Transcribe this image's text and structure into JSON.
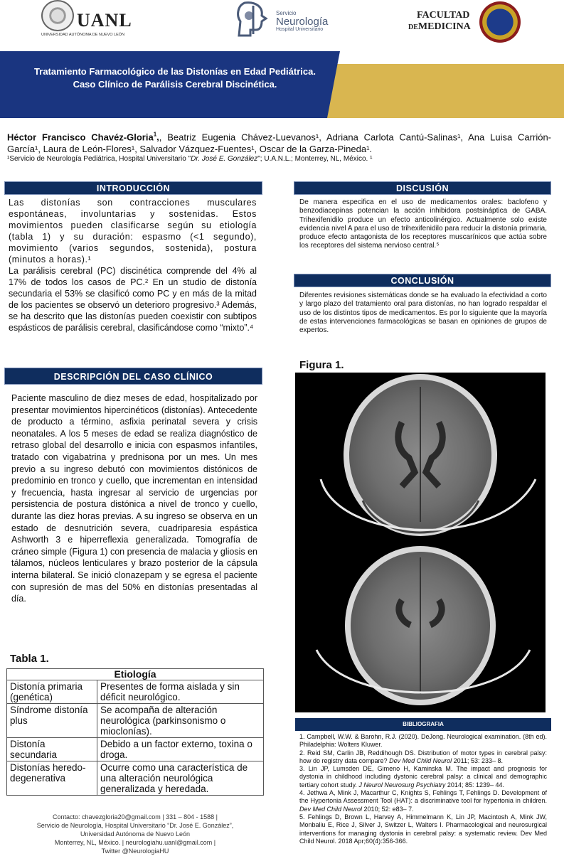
{
  "header": {
    "uanl_name": "UANL",
    "uanl_sub": "UNIVERSIDAD AUTÓNOMA DE NUEVO LEÓN",
    "neuro_line1": "Servicio",
    "neuro_line2": "Neurología",
    "neuro_line3": "Hospital Universitario",
    "fm_line1": "FACULTAD",
    "fm_de": "DE",
    "fm_line2": "MEDICINA"
  },
  "banner": {
    "title_line1": "Tratamiento Farmacológico de las Distonías en Edad Pediátrica.",
    "title_line2": "Caso Clínico de Parálisis Cerebral Discinética."
  },
  "authors": {
    "lead": "Héctor Francisco Chavéz-Gloria",
    "lead_sup": "1",
    "rest": ", Beatriz Eugenia Chávez-Luevanos¹, Adriana Carlota Cantú-Salinas¹, Ana Luisa Carrión-García¹, Laura de León-Flores¹, Salvador Vázquez-Fuentes¹, Oscar de la Garza-Pineda¹.",
    "affil_pre": "¹Servicio de Neurología Pediátrica, Hospital Universitario \"",
    "affil_italic": "Dr. José E. González",
    "affil_post": "\"; U.A.N.L.; Monterrey, NL, México. ¹"
  },
  "sections": {
    "intro": "INTRODUCCIÓN",
    "caso": "DESCRIPCIÓN DEL CASO CLÍNICO",
    "disc": "DISCUSIÓN",
    "concl": "CONCLUSIÓN",
    "biblio": "BIBLIOGRAFIA"
  },
  "intro": {
    "p1": "Las distonías son contracciones musculares espontáneas, involuntarias y sostenidas. Estos movimientos pueden clasificarse según su etiología (tabla 1) y su duración: espasmo (<1 segundo), movimiento (varios segundos, sostenida), postura (minutos a horas).¹",
    "p2": "La parálisis cerebral (PC) discinética comprende del 4% al 17% de todos los casos de PC.² En un studio de distonía secundaria el 53% se clasificó como PC y en más de la mitad de los pacientes se observó un deterioro progresivo.³ Además, se ha descrito que las distonías pueden coexistir con subtipos espásticos de parálisis cerebral, clasificándose como “mixto”.⁴"
  },
  "caso": {
    "text": "Paciente masculino de diez meses de edad, hospitalizado por presentar movimientos hipercinéticos (distonías). Antecedente de producto a término, asfixia perinatal severa y crisis neonatales. A los 5 meses de edad se realiza diagnóstico de retraso global del desarrollo e inicia con espasmos infantiles, tratado con vigabatrina y prednisona por un mes. Un mes previo a su ingreso debutó con movimientos distónicos de predominio en tronco y cuello, que incrementan en intensidad y frecuencia, hasta ingresar al servicio de urgencias por persistencia de postura distónica a nivel de tronco y cuello, durante las diez horas previas. A su ingreso se observa en un estado de desnutrición severa, cuadriparesia espástica Ashworth 3 e hiperreflexia generalizada. Tomografía de cráneo simple (Figura 1) con presencia de malacia y gliosis en tálamos, núcleos lenticulares y brazo posterior de la cápsula interna bilateral. Se inició clonazepam y se egresa el paciente con supresión de mas del 50% en distonías presentadas al día."
  },
  "disc": {
    "text": "De manera especifica en el uso de medicamentos orales: baclofeno y benzodiacepinas potencian la acción inhibidora postsináptica de GABA. Trihexifenidilo produce un efecto anticolinérgico. Actualmente solo existe evidencia nivel A para el uso de trihexifenidilo para reducir la distonía primaria, produce efecto antagonista de los receptores muscarínicos que actúa sobre los receptores del sistema nervioso central.⁵"
  },
  "concl": {
    "text": "Diferentes revisiones sistemáticas donde se ha evaluado la efectividad a corto y largo plazo del tratamiento oral para distonías, no han logrado respaldar el uso de los distintos tipos de medicamentos. Es por lo siguiente que la mayoría de estas intervenciones farmacológicas se basan en opiniones de grupos de expertos."
  },
  "figure": {
    "label": "Figura 1."
  },
  "table": {
    "label": "Tabla 1.",
    "header": "Etiología",
    "rows": [
      {
        "type": "Distonía primaria (genética)",
        "desc": "Presentes de forma aislada y sin déficit neurológico."
      },
      {
        "type": "Síndrome distonía plus",
        "desc": "Se acompaña de alteración neurológica (parkinsonismo o mioclonías)."
      },
      {
        "type": "Distonía secundaria",
        "desc": "Debido a un factor externo, toxina o droga."
      },
      {
        "type": "Distonías heredo-degenerativa",
        "desc": "Ocurre como una característica de una alteración neurológica generalizada y heredada."
      }
    ]
  },
  "contact": {
    "line1": "Contacto: chavezgloria20@gmail.com | 331 – 804 - 1588 |",
    "line2": "Servicio de Neurología, Hospital Universitario “Dr. José E. González”,",
    "line3": "Universidad Autónoma de Nuevo León",
    "line4": "Monterrey, NL, México. | neurologiahu.uanl@gmail.com |",
    "line5": "Twitter @NeurologiaHU"
  },
  "biblio": {
    "r1": "1. Campbell, W.W. & Barohn, R.J. (2020). DeJong. Neurological examination. (8th ed). Philadelphia: Wolters Kluwer.",
    "r2a": "2. Reid SM, Carlin JB, Reddihough DS. Distribution of motor types in cerebral palsy: how do registry data compare? ",
    "r2i": "Dev Med Child Neurol",
    "r2b": " 2011; 53: 233– 8.",
    "r3a": "3. Lin JP, Lumsden DE, Gimeno H, Kaminska M. The impact and prognosis for dystonia in childhood including dystonic cerebral palsy: a clinical and demographic tertiary cohort study. ",
    "r3i": "J Neurol Neurosurg Psychiatry",
    "r3b": " 2014; 85: 1239– 44.",
    "r4a": "4. Jethwa A, Mink J, Macarthur C, Knights S, Fehlings T, Fehlings D. Development of the Hypertonia Assessment Tool (HAT): a discriminative tool for hypertonia in children. ",
    "r4i": "Dev Med Child Neurol",
    "r4b": " 2010; 52: e83– 7.",
    "r5": "5. Fehlings D, Brown L, Harvey A, Himmelmann K, Lin JP, Macintosh A, Mink JW, Monbaliu E, Rice J, Silver J, Switzer L, Walters I. Pharmacological and neurosurgical interventions for managing dystonia in cerebral palsy: a systematic review. Dev Med Child Neurol. 2018 Apr;60(4):356-366."
  }
}
